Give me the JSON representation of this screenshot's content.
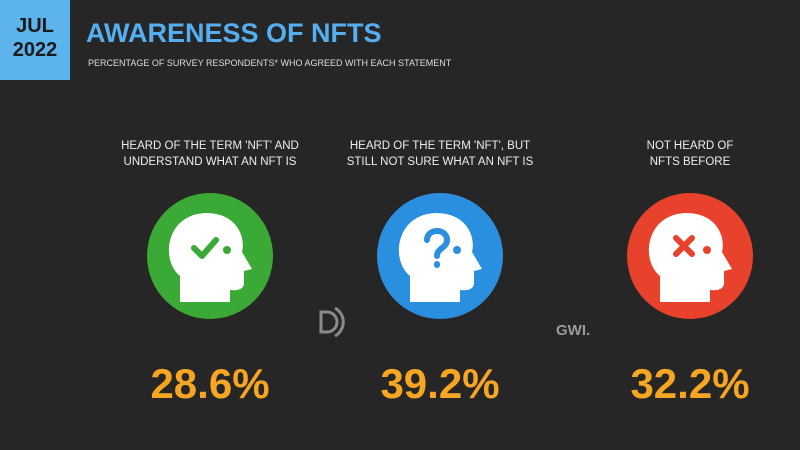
{
  "badge": {
    "month": "JUL",
    "year": "2022"
  },
  "chart_data": {
    "type": "stat",
    "title": "AWARENESS OF NFTS",
    "subtitle": "PERCENTAGE OF SURVEY RESPONDENTS* WHO AGREED WITH EACH STATEMENT",
    "categories": [
      "HEARD OF THE TERM 'NFT' AND\nUNDERSTAND WHAT AN NFT IS",
      "HEARD OF THE TERM 'NFT', BUT\nSTILL NOT SURE WHAT AN NFT IS",
      "NOT HEARD OF\nNFTS BEFORE"
    ],
    "values": [
      28.6,
      39.2,
      32.2
    ],
    "value_labels": [
      "28.6%",
      "39.2%",
      "32.2%"
    ],
    "colors": [
      "#3aa935",
      "#2b8fe0",
      "#e8412c"
    ],
    "value_color": "#f6a623",
    "source": "GWI."
  }
}
